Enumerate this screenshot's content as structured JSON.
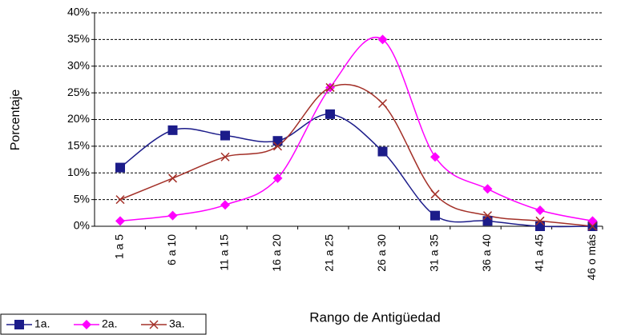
{
  "chart_data": {
    "type": "line",
    "y_label": "Porcentaje",
    "x_label": "Rango de Antigüedad",
    "categories": [
      "1 a 5",
      "6 a 10",
      "11 a 15",
      "16 a 20",
      "21 a 25",
      "26 a 30",
      "31 a 35",
      "36 a 40",
      "41 a 45",
      "46 o más"
    ],
    "series": [
      {
        "name": "1a.",
        "color": "#1c1c8a",
        "marker": "square",
        "values": [
          11,
          18,
          17,
          16,
          21,
          14,
          2,
          1,
          0,
          0
        ]
      },
      {
        "name": "2a.",
        "color": "#ff00ff",
        "marker": "diamond",
        "values": [
          1,
          2,
          4,
          9,
          26,
          35,
          13,
          7,
          3,
          1
        ]
      },
      {
        "name": "3a.",
        "color": "#a33028",
        "marker": "x",
        "values": [
          5,
          9,
          13,
          15,
          26,
          23,
          6,
          2,
          1,
          0
        ]
      }
    ],
    "ylim": [
      0,
      40
    ],
    "yticks": [
      {
        "value": 0,
        "label": "0%"
      },
      {
        "value": 5,
        "label": "5%"
      },
      {
        "value": 10,
        "label": "10%"
      },
      {
        "value": 15,
        "label": "15%"
      },
      {
        "value": 20,
        "label": "20%"
      },
      {
        "value": 25,
        "label": "25%"
      },
      {
        "value": 30,
        "label": "30%"
      },
      {
        "value": 35,
        "label": "35%"
      },
      {
        "value": 40,
        "label": "40%"
      }
    ],
    "grid": true,
    "smooth": true,
    "legend": "bottom-left"
  }
}
